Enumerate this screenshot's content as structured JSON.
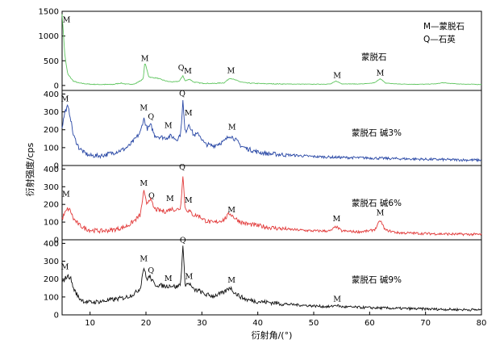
{
  "chart_data": {
    "type": "line",
    "xlabel": "衍射角/(°)",
    "ylabel": "衍射强度/cps",
    "xlim": [
      5,
      80
    ],
    "x_ticks": [
      "10",
      "20",
      "30",
      "40",
      "50",
      "60",
      "70",
      "80"
    ],
    "legend": [
      "M—蒙脱石",
      "Q—石英"
    ],
    "grid": false,
    "panels": [
      {
        "label": "蒙脱石",
        "color": "#5fc55f",
        "ylim": [
          -100,
          1500
        ],
        "y_ticks": [
          "0",
          "500",
          "1000",
          "1500"
        ],
        "peak_labels": [
          {
            "text": "M",
            "x": 5.8,
            "y": 1280
          },
          {
            "text": "M",
            "x": 19.8,
            "y": 500
          },
          {
            "text": "Q",
            "x": 26.3,
            "y": 310
          },
          {
            "text": "M",
            "x": 27.5,
            "y": 240
          },
          {
            "text": "M",
            "x": 35.2,
            "y": 255
          },
          {
            "text": "M",
            "x": 54.2,
            "y": 150
          },
          {
            "text": "M",
            "x": 61.9,
            "y": 200
          }
        ],
        "points": [
          [
            5,
            1450
          ],
          [
            5.5,
            600
          ],
          [
            6,
            230
          ],
          [
            7,
            90
          ],
          [
            8,
            50
          ],
          [
            10,
            25
          ],
          [
            12,
            20
          ],
          [
            14,
            20
          ],
          [
            15.5,
            50
          ],
          [
            16.5,
            25
          ],
          [
            18,
            30
          ],
          [
            19.5,
            130
          ],
          [
            19.8,
            470
          ],
          [
            20.5,
            180
          ],
          [
            21,
            160
          ],
          [
            22,
            150
          ],
          [
            23,
            110
          ],
          [
            24,
            80
          ],
          [
            25,
            70
          ],
          [
            26,
            90
          ],
          [
            26.6,
            200
          ],
          [
            27,
            90
          ],
          [
            27.8,
            130
          ],
          [
            28.5,
            70
          ],
          [
            30,
            45
          ],
          [
            32,
            40
          ],
          [
            34,
            55
          ],
          [
            35,
            150
          ],
          [
            36,
            110
          ],
          [
            37,
            70
          ],
          [
            38,
            50
          ],
          [
            40,
            40
          ],
          [
            42,
            35
          ],
          [
            45,
            30
          ],
          [
            50,
            25
          ],
          [
            53,
            30
          ],
          [
            54,
            90
          ],
          [
            55,
            35
          ],
          [
            58,
            30
          ],
          [
            60,
            40
          ],
          [
            61,
            60
          ],
          [
            61.9,
            140
          ],
          [
            62.8,
            50
          ],
          [
            65,
            30
          ],
          [
            68,
            25
          ],
          [
            70,
            25
          ],
          [
            72,
            35
          ],
          [
            73,
            55
          ],
          [
            74,
            45
          ],
          [
            76,
            30
          ],
          [
            78,
            25
          ],
          [
            80,
            20
          ]
        ]
      },
      {
        "label": "蒙脱石 碱3%",
        "color": "#2847a5",
        "ylim": [
          0,
          420
        ],
        "y_ticks": [
          "0",
          "100",
          "200",
          "300",
          "400"
        ],
        "peak_labels": [
          {
            "text": "M",
            "x": 5.5,
            "y": 360
          },
          {
            "text": "M",
            "x": 19.6,
            "y": 310
          },
          {
            "text": "Q",
            "x": 20.9,
            "y": 260
          },
          {
            "text": "M",
            "x": 24.0,
            "y": 210
          },
          {
            "text": "Q",
            "x": 26.5,
            "y": 388
          },
          {
            "text": "M",
            "x": 27.6,
            "y": 280
          },
          {
            "text": "M",
            "x": 35.4,
            "y": 200
          }
        ],
        "points": [
          [
            5,
            215
          ],
          [
            5.5,
            300
          ],
          [
            6,
            330
          ],
          [
            6.5,
            270
          ],
          [
            7,
            170
          ],
          [
            8,
            100
          ],
          [
            9,
            70
          ],
          [
            10,
            55
          ],
          [
            12,
            55
          ],
          [
            14,
            70
          ],
          [
            16,
            90
          ],
          [
            17,
            110
          ],
          [
            18,
            145
          ],
          [
            19,
            185
          ],
          [
            19.6,
            265
          ],
          [
            20.2,
            205
          ],
          [
            20.9,
            225
          ],
          [
            21.5,
            170
          ],
          [
            22.5,
            160
          ],
          [
            23.5,
            155
          ],
          [
            24.5,
            165
          ],
          [
            25.5,
            145
          ],
          [
            26.2,
            175
          ],
          [
            26.6,
            360
          ],
          [
            27,
            180
          ],
          [
            27.7,
            235
          ],
          [
            28.5,
            170
          ],
          [
            29.5,
            175
          ],
          [
            30.5,
            120
          ],
          [
            32,
            110
          ],
          [
            34,
            135
          ],
          [
            35,
            170
          ],
          [
            36,
            145
          ],
          [
            37,
            110
          ],
          [
            38,
            95
          ],
          [
            40,
            75
          ],
          [
            42,
            65
          ],
          [
            45,
            60
          ],
          [
            50,
            50
          ],
          [
            55,
            45
          ],
          [
            60,
            42
          ],
          [
            65,
            38
          ],
          [
            70,
            35
          ],
          [
            75,
            32
          ],
          [
            80,
            30
          ]
        ]
      },
      {
        "label": "蒙脱石 碱6%",
        "color": "#e23a3a",
        "ylim": [
          0,
          420
        ],
        "y_ticks": [
          "0",
          "100",
          "200",
          "300",
          "400"
        ],
        "peak_labels": [
          {
            "text": "M",
            "x": 5.7,
            "y": 245
          },
          {
            "text": "M",
            "x": 19.6,
            "y": 305
          },
          {
            "text": "Q",
            "x": 21.0,
            "y": 235
          },
          {
            "text": "M",
            "x": 24.3,
            "y": 220
          },
          {
            "text": "Q",
            "x": 26.5,
            "y": 398
          },
          {
            "text": "M",
            "x": 27.6,
            "y": 210
          },
          {
            "text": "M",
            "x": 35.3,
            "y": 155
          },
          {
            "text": "M",
            "x": 54.1,
            "y": 105
          },
          {
            "text": "M",
            "x": 61.9,
            "y": 140
          }
        ],
        "points": [
          [
            5,
            120
          ],
          [
            5.5,
            150
          ],
          [
            6,
            175
          ],
          [
            6.5,
            165
          ],
          [
            7,
            120
          ],
          [
            8,
            85
          ],
          [
            9,
            65
          ],
          [
            10,
            55
          ],
          [
            12,
            50
          ],
          [
            14,
            55
          ],
          [
            16,
            70
          ],
          [
            17,
            85
          ],
          [
            18,
            110
          ],
          [
            19,
            140
          ],
          [
            19.6,
            275
          ],
          [
            20.1,
            205
          ],
          [
            20.7,
            235
          ],
          [
            21.5,
            175
          ],
          [
            22.5,
            165
          ],
          [
            23.5,
            160
          ],
          [
            24.5,
            175
          ],
          [
            25.5,
            170
          ],
          [
            26.2,
            180
          ],
          [
            26.6,
            370
          ],
          [
            27,
            175
          ],
          [
            27.8,
            160
          ],
          [
            28.5,
            140
          ],
          [
            29.5,
            135
          ],
          [
            30.5,
            110
          ],
          [
            32,
            95
          ],
          [
            34,
            115
          ],
          [
            35,
            150
          ],
          [
            36,
            120
          ],
          [
            37,
            100
          ],
          [
            38,
            90
          ],
          [
            40,
            80
          ],
          [
            42,
            70
          ],
          [
            45,
            60
          ],
          [
            50,
            50
          ],
          [
            53,
            50
          ],
          [
            54,
            75
          ],
          [
            55,
            50
          ],
          [
            58,
            45
          ],
          [
            60,
            50
          ],
          [
            61,
            60
          ],
          [
            61.9,
            110
          ],
          [
            62.8,
            55
          ],
          [
            65,
            40
          ],
          [
            70,
            35
          ],
          [
            75,
            32
          ],
          [
            80,
            30
          ]
        ]
      },
      {
        "label": "蒙脱石 碱9%",
        "color": "#111111",
        "ylim": [
          0,
          420
        ],
        "y_ticks": [
          "0",
          "100",
          "200",
          "300",
          "400"
        ],
        "peak_labels": [
          {
            "text": "M",
            "x": 5.5,
            "y": 255
          },
          {
            "text": "M",
            "x": 19.6,
            "y": 300
          },
          {
            "text": "Q",
            "x": 20.9,
            "y": 235
          },
          {
            "text": "M",
            "x": 24.0,
            "y": 190
          },
          {
            "text": "Q",
            "x": 26.6,
            "y": 405
          },
          {
            "text": "M",
            "x": 27.7,
            "y": 200
          },
          {
            "text": "M",
            "x": 35.3,
            "y": 180
          },
          {
            "text": "M",
            "x": 54.2,
            "y": 75
          }
        ],
        "points": [
          [
            5,
            175
          ],
          [
            5.5,
            205
          ],
          [
            6,
            215
          ],
          [
            6.5,
            210
          ],
          [
            7,
            150
          ],
          [
            8,
            95
          ],
          [
            9,
            75
          ],
          [
            10,
            70
          ],
          [
            12,
            75
          ],
          [
            14,
            85
          ],
          [
            16,
            95
          ],
          [
            17,
            105
          ],
          [
            18,
            120
          ],
          [
            19,
            150
          ],
          [
            19.6,
            270
          ],
          [
            20.1,
            200
          ],
          [
            20.7,
            215
          ],
          [
            21.5,
            170
          ],
          [
            22.5,
            165
          ],
          [
            23.5,
            160
          ],
          [
            24.5,
            165
          ],
          [
            25.5,
            155
          ],
          [
            26.2,
            175
          ],
          [
            26.6,
            385
          ],
          [
            27,
            170
          ],
          [
            27.8,
            175
          ],
          [
            28.5,
            140
          ],
          [
            29.5,
            135
          ],
          [
            30.5,
            115
          ],
          [
            32,
            105
          ],
          [
            34,
            125
          ],
          [
            35,
            155
          ],
          [
            36,
            120
          ],
          [
            37,
            100
          ],
          [
            38,
            85
          ],
          [
            40,
            75
          ],
          [
            42,
            70
          ],
          [
            45,
            60
          ],
          [
            50,
            50
          ],
          [
            53,
            45
          ],
          [
            54,
            55
          ],
          [
            55,
            45
          ],
          [
            58,
            42
          ],
          [
            60,
            40
          ],
          [
            65,
            36
          ],
          [
            70,
            33
          ],
          [
            75,
            30
          ],
          [
            80,
            28
          ]
        ]
      }
    ]
  }
}
